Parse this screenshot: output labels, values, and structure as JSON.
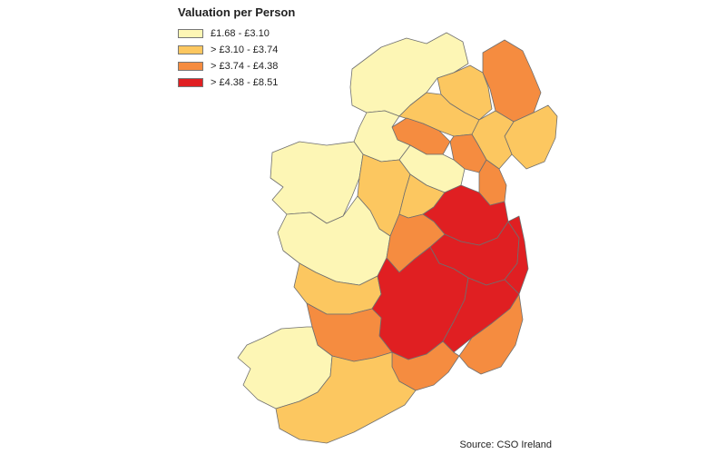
{
  "legend": {
    "title": "Valuation per Person",
    "items": [
      {
        "label": "£1.68 -  £3.10",
        "color": "#fdf6b5"
      },
      {
        "label": "> £3.10 - £3.74",
        "color": "#fcc760"
      },
      {
        "label": "> £3.74 - £4.38",
        "color": "#f58c40"
      },
      {
        "label": "> £4.38 - £8.51",
        "color": "#e01f22"
      }
    ]
  },
  "source": "Source:  CSO Ireland"
}
